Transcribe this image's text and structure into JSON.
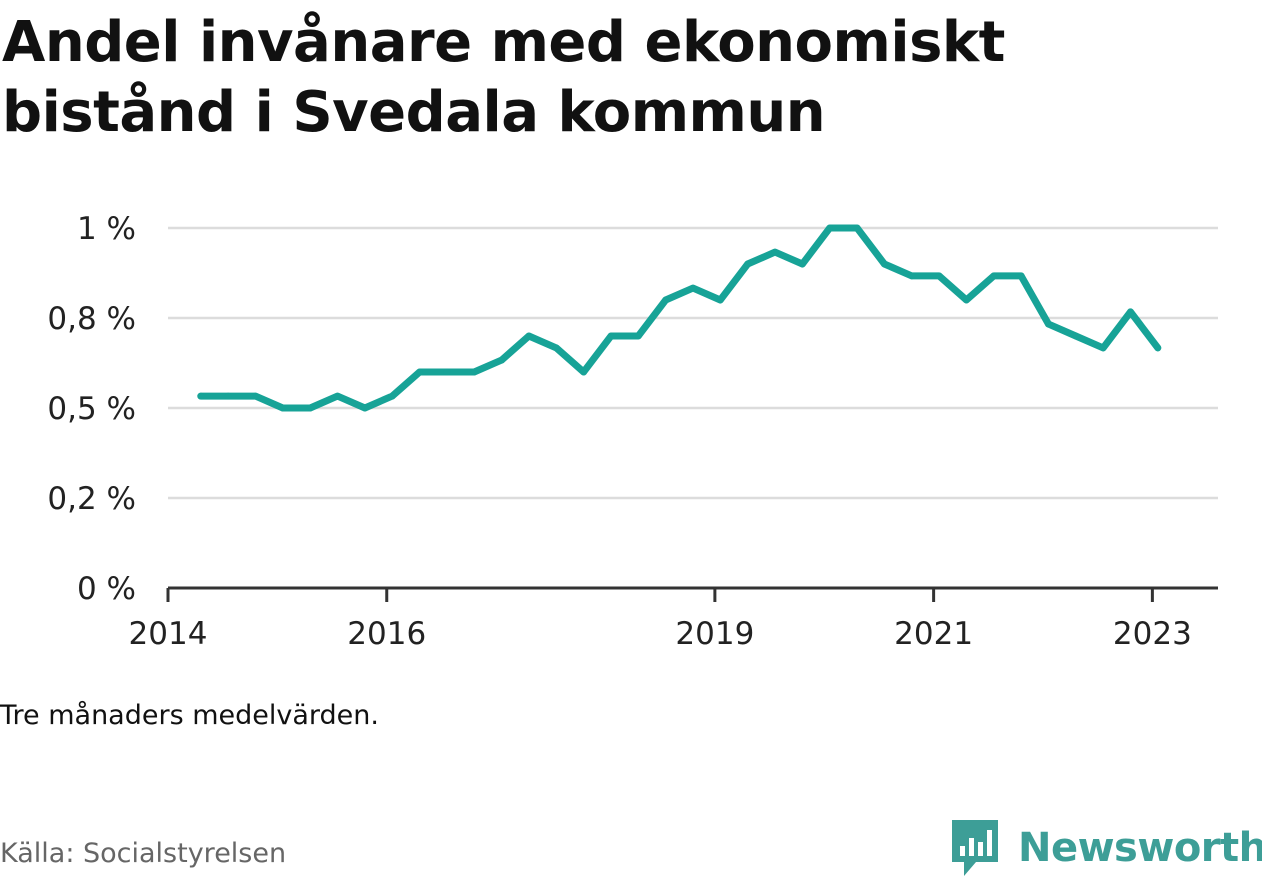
{
  "title": "Andel invånare med ekonomiskt bistånd i Svedala kommun",
  "note": "Tre månaders medelvärden.",
  "source": "Källa: Socialstyrelsen",
  "brand": {
    "name": "Newsworthy",
    "icon": "bar-chart-speech-bubble-icon",
    "color": "#3d9e97"
  },
  "chart_data": {
    "type": "line",
    "title": "Andel invånare med ekonomiskt bistånd i Svedala kommun",
    "xlabel": "",
    "ylabel": "",
    "xlim": [
      2014.0,
      2023.6
    ],
    "ylim": [
      0,
      1.0
    ],
    "y_ticks": [
      {
        "value": 0,
        "label": "0 %"
      },
      {
        "value": 0.25,
        "label": "0,2 %"
      },
      {
        "value": 0.5,
        "label": "0,5 %"
      },
      {
        "value": 0.75,
        "label": "0,8 %"
      },
      {
        "value": 1.0,
        "label": "1 %"
      }
    ],
    "x_ticks": [
      {
        "value": 2014,
        "label": "2014"
      },
      {
        "value": 2016,
        "label": "2016"
      },
      {
        "value": 2019,
        "label": "2019"
      },
      {
        "value": 2021,
        "label": "2021"
      },
      {
        "value": 2023,
        "label": "2023"
      }
    ],
    "grid": true,
    "line_color": "#17a397",
    "series": [
      {
        "x": [
          2014.3,
          2014.55,
          2014.8,
          2015.05,
          2015.3,
          2015.55,
          2015.8,
          2016.05,
          2016.3,
          2016.55,
          2016.8,
          2017.05,
          2017.3,
          2017.55,
          2017.8,
          2018.05,
          2018.3,
          2018.55,
          2018.8,
          2019.05,
          2019.3,
          2019.55,
          2019.8,
          2020.05,
          2020.3,
          2020.55,
          2020.8,
          2021.05,
          2021.3,
          2021.55,
          2021.8,
          2022.05,
          2022.3,
          2022.55,
          2022.8,
          2023.05
        ],
        "values": [
          0.533,
          0.533,
          0.533,
          0.5,
          0.5,
          0.533,
          0.5,
          0.533,
          0.6,
          0.6,
          0.6,
          0.633,
          0.7,
          0.667,
          0.6,
          0.7,
          0.7,
          0.8,
          0.833,
          0.8,
          0.9,
          0.933,
          0.9,
          1.0,
          1.0,
          0.9,
          0.867,
          0.867,
          0.8,
          0.867,
          0.867,
          0.733,
          0.7,
          0.667,
          0.767,
          0.667
        ]
      }
    ]
  }
}
